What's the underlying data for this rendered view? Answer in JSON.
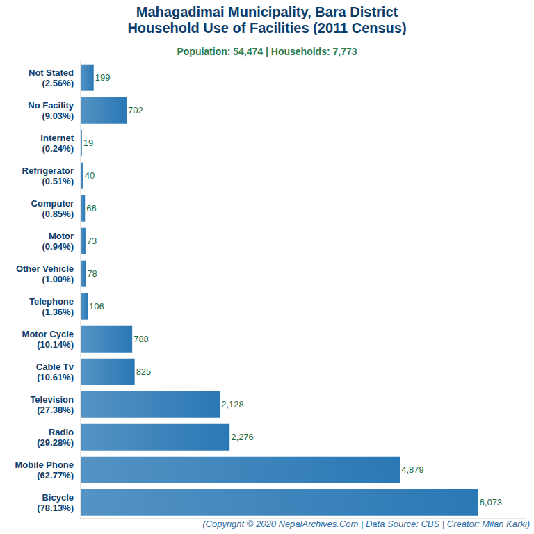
{
  "chart_data": {
    "type": "bar",
    "orientation": "horizontal",
    "title": [
      "Mahagadimai Municipality, Bara District",
      "Household Use of Facilities (2011 Census)"
    ],
    "subtitle": "Population: 54,474 | Households: 7,773",
    "footer": "(Copyright © 2020 NepalArchives.Com | Data Source: CBS | Creator: Milan Karki)",
    "categories": [
      "Not Stated",
      "No Facility",
      "Internet",
      "Refrigerator",
      "Computer",
      "Motor",
      "Other Vehicle",
      "Telephone",
      "Motor Cycle",
      "Cable Tv",
      "Television",
      "Radio",
      "Mobile Phone",
      "Bicycle"
    ],
    "category_sublabels": [
      "(2.56%)",
      "(9.03%)",
      "(0.24%)",
      "(0.51%)",
      "(0.85%)",
      "(0.94%)",
      "(1.00%)",
      "(1.36%)",
      "(10.14%)",
      "(10.61%)",
      "(27.38%)",
      "(29.28%)",
      "(62.77%)",
      "(78.13%)"
    ],
    "values": [
      199,
      702,
      19,
      40,
      66,
      73,
      78,
      106,
      788,
      825,
      2128,
      2276,
      4879,
      6073
    ],
    "value_labels": [
      "199",
      "702",
      "19",
      "40",
      "66",
      "73",
      "78",
      "106",
      "788",
      "825",
      "2,128",
      "2,276",
      "4,879",
      "6,073"
    ],
    "color": "#2a78b5",
    "xlim": [
      0,
      6800
    ],
    "data_labels": true,
    "tick_labels": "y",
    "grid": false
  }
}
